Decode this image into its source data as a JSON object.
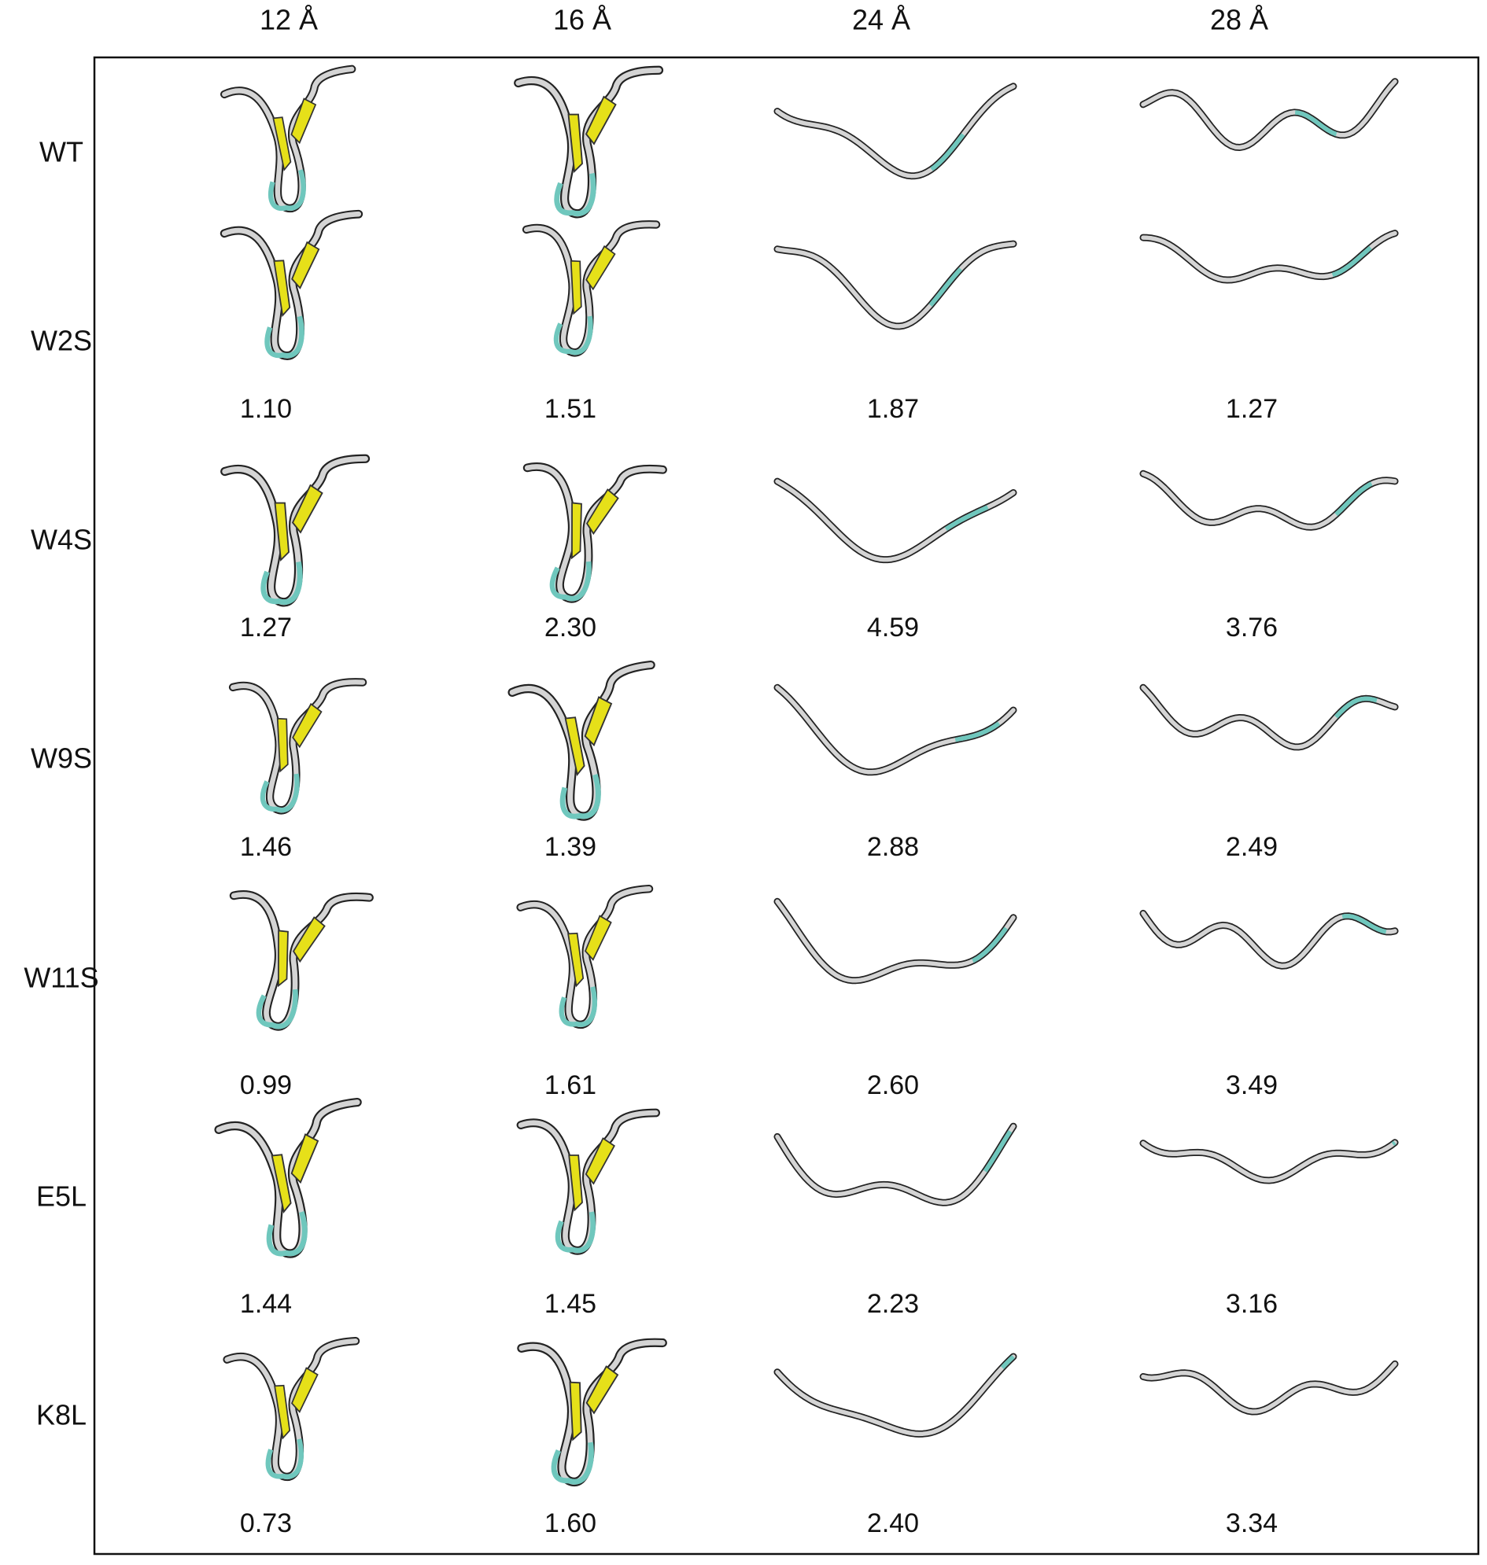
{
  "column_headers": [
    "12 Å",
    "16 Å",
    "24 Å",
    "28 Å"
  ],
  "rows": [
    {
      "label": "WT"
    },
    {
      "label": "W2S",
      "values": [
        "1.10",
        "1.51",
        "1.87",
        "1.27"
      ]
    },
    {
      "label": "W4S",
      "values": [
        "1.27",
        "2.30",
        "4.59",
        "3.76"
      ]
    },
    {
      "label": "W9S",
      "values": [
        "1.46",
        "1.39",
        "2.88",
        "2.49"
      ]
    },
    {
      "label": "W11S",
      "values": [
        "0.99",
        "1.61",
        "2.60",
        "3.49"
      ]
    },
    {
      "label": "E5L",
      "values": [
        "1.44",
        "1.45",
        "2.23",
        "3.16"
      ]
    },
    {
      "label": "K8L",
      "values": [
        "0.73",
        "1.60",
        "2.40",
        "3.34"
      ]
    }
  ]
}
